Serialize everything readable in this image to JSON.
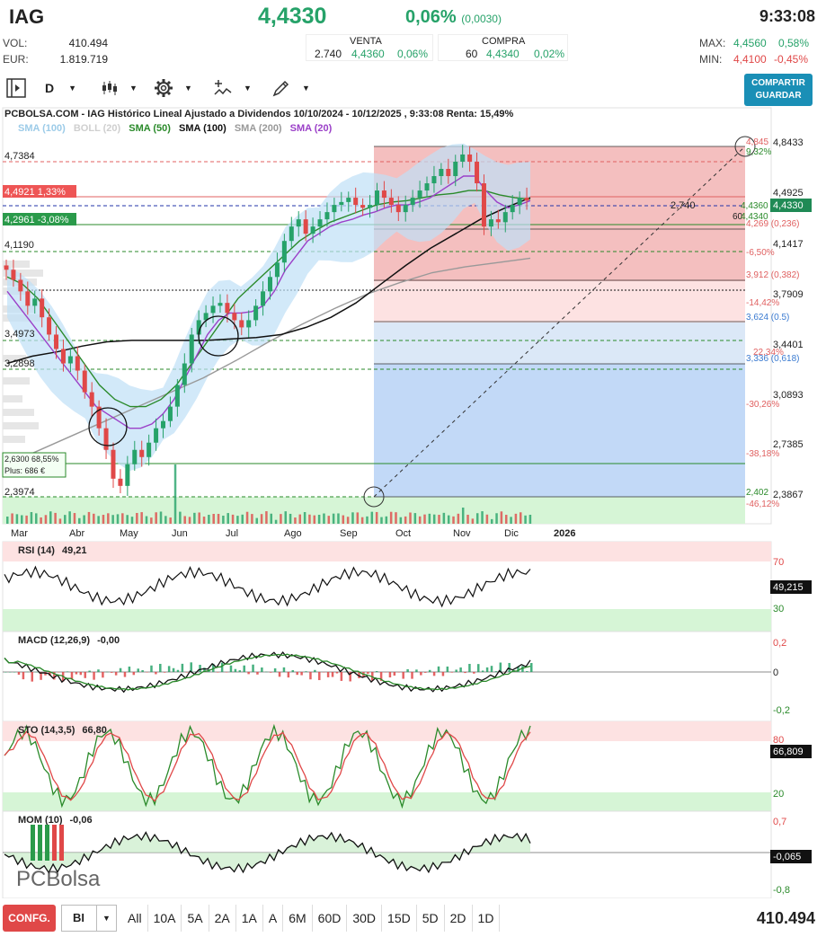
{
  "header": {
    "symbol": "IAG",
    "price": "4,4330",
    "change_pct": "0,06%",
    "change_abs": "(0,0030)",
    "time": "9:33:08",
    "vol_label": "VOL:",
    "vol_value": "410.494",
    "eur_label": "EUR:",
    "eur_value": "1.819.719",
    "venta_label": "VENTA",
    "venta_qty": "2.740",
    "venta_price": "4,4360",
    "venta_pct": "0,06%",
    "compra_label": "COMPRA",
    "compra_qty": "60",
    "compra_price": "4,4340",
    "compra_pct": "0,02%",
    "max_label": "MAX:",
    "max_value": "4,4560",
    "max_pct": "0,58%",
    "min_label": "MIN:",
    "min_value": "4,4100",
    "min_pct": "-0,45%"
  },
  "toolbar": {
    "period": "D",
    "share_line1": "COMPARTIR",
    "share_line2": "GUARDAR"
  },
  "chart_title": "PCBOLSA.COM - IAG Histórico Lineal Ajustado a Dividendos 10/10/2024 - 10/12/2025 , 9:33:08 Renta: 15,49%",
  "legend": {
    "sma100b": "SMA (100)",
    "boll": "BOLL (20)",
    "sma50": "SMA (50)",
    "sma100": "SMA (100)",
    "sma200": "SMA (200)",
    "sma20": "SMA (20)"
  },
  "colors": {
    "up": "#26a269",
    "down": "#e04848",
    "sma20": "#9b40c8",
    "sma50": "#2a8a2a",
    "sma100": "#111111",
    "sma200": "#999999",
    "boll": "#bfe0f7",
    "accent": "#1a8fb6"
  },
  "chart_data": [
    {
      "type": "line",
      "months": [
        "Mar",
        "Abr",
        "May",
        "Jun",
        "Jul",
        "Ago",
        "Sep",
        "Oct",
        "Nov",
        "Dic",
        "2026"
      ],
      "left_labels": [
        "4,7384",
        "4,4921  1,33%",
        "4,2961  -3,08%",
        "4,1190",
        "3,4973",
        "3,2898",
        "2,6300  68,55%",
        "Plus: 686 €",
        "2,3974"
      ],
      "right_axis": [
        "4,8433",
        "4,4925",
        "4,1417",
        "3,7909",
        "3,4401",
        "3,0893",
        "2,7385",
        "2,3867"
      ],
      "fib_levels": [
        {
          "price": "4,845",
          "pct": "9,32%"
        },
        {
          "price": "4,360",
          "pct": ""
        },
        {
          "price": "4,269 (0,236)",
          "pct": "-6,50%"
        },
        {
          "price": "3,912 (0,382)",
          "pct": "-14,42%"
        },
        {
          "price": "3,624 (0.5)",
          "pct": "22,34%"
        },
        {
          "price": "3,336 (0,618)",
          "pct": "-30,26%"
        },
        {
          "price": "2,402",
          "pct": "-38,18%"
        },
        {
          "pct": "-46,12%"
        }
      ],
      "badges": {
        "bid": "4,4360",
        "ask": "4,4340",
        "last": "4,4330",
        "qty": "2.740",
        "qty2": "60"
      },
      "close": [
        3.95,
        3.88,
        3.8,
        3.7,
        3.75,
        3.62,
        3.5,
        3.4,
        3.3,
        3.35,
        3.25,
        3.1,
        3.0,
        2.85,
        2.7,
        2.5,
        2.45,
        2.6,
        2.7,
        2.65,
        2.75,
        2.85,
        2.9,
        3.0,
        3.15,
        3.3,
        3.5,
        3.6,
        3.65,
        3.7,
        3.72,
        3.65,
        3.6,
        3.55,
        3.6,
        3.7,
        3.8,
        3.9,
        4.0,
        4.15,
        4.25,
        4.3,
        4.2,
        4.25,
        4.3,
        4.35,
        4.4,
        4.42,
        4.45,
        4.4,
        4.38,
        4.4,
        4.5,
        4.45,
        4.4,
        4.35,
        4.4,
        4.45,
        4.5,
        4.55,
        4.6,
        4.65,
        4.6,
        4.7,
        4.75,
        4.7,
        4.55,
        4.25,
        4.3,
        4.28,
        4.35,
        4.4,
        4.45,
        4.43
      ],
      "sma20": [
        3.8,
        3.7,
        3.6,
        3.5,
        3.4,
        3.3,
        3.2,
        3.1,
        3.0,
        2.95,
        2.9,
        2.85,
        2.85,
        2.88,
        2.95,
        3.05,
        3.2,
        3.35,
        3.5,
        3.6,
        3.65,
        3.65,
        3.66,
        3.7,
        3.8,
        3.95,
        4.05,
        4.15,
        4.2,
        4.25,
        4.28,
        4.3,
        4.33,
        4.35,
        4.38,
        4.4,
        4.4,
        4.42,
        4.45,
        4.5,
        4.55,
        4.6,
        4.6,
        4.5,
        4.42,
        4.38,
        4.4,
        4.43
      ],
      "sma50": [
        3.9,
        3.85,
        3.75,
        3.6,
        3.45,
        3.3,
        3.15,
        3.05,
        3.0,
        3.0,
        3.05,
        3.15,
        3.3,
        3.45,
        3.6,
        3.75,
        3.85,
        3.95,
        4.05,
        4.15,
        4.22,
        4.28,
        4.32,
        4.36,
        4.4,
        4.42,
        4.43,
        4.45,
        4.47,
        4.48,
        4.5,
        4.5,
        4.47,
        4.45,
        4.44
      ],
      "sma100": [
        3.3,
        3.35,
        3.38,
        3.42,
        3.45,
        3.46,
        3.46,
        3.46,
        3.46,
        3.47,
        3.48,
        3.5,
        3.55,
        3.62,
        3.72,
        3.85,
        3.98,
        4.1,
        4.2,
        4.3,
        4.38,
        4.45
      ],
      "sma200": [
        2.6,
        2.7,
        2.8,
        2.9,
        3.0,
        3.1,
        3.2,
        3.32,
        3.45,
        3.57,
        3.68,
        3.78,
        3.86,
        3.93,
        3.97,
        4.0,
        4.03
      ],
      "rsi": {
        "label": "RSI (14)",
        "value": "49,21",
        "badge": "49,215",
        "levels": [
          "70",
          "30"
        ]
      },
      "macd": {
        "label": "MACD (12,26,9)",
        "value": "-0,00",
        "levels": [
          "0,2",
          "0",
          "-0,2"
        ]
      },
      "sto": {
        "label": "STO (14,3,5)",
        "value": "66,80",
        "badge": "66,809",
        "levels": [
          "80",
          "20"
        ]
      },
      "mom": {
        "label": "MOM (10)",
        "value": "-0,06",
        "badge": "-0,065",
        "levels": [
          "0,7",
          "-0,8"
        ]
      }
    }
  ],
  "watermark": "PCBolsa",
  "bottom": {
    "config": "CONFG.",
    "bi": "BI",
    "timeframes": [
      "All",
      "10A",
      "5A",
      "2A",
      "1A",
      "A",
      "6M",
      "60D",
      "30D",
      "15D",
      "5D",
      "2D",
      "1D"
    ],
    "volume": "410.494"
  }
}
